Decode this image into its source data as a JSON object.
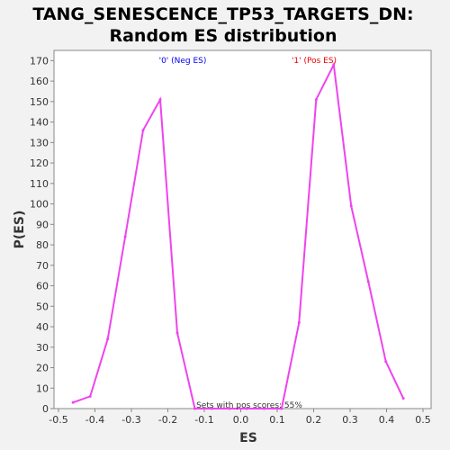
{
  "chart_data": {
    "type": "line",
    "title_line1": "TANG_SENESCENCE_TP53_TARGETS_DN:",
    "title_line2": "Random ES distribution",
    "xlabel": "ES",
    "ylabel": "P(ES)",
    "xlim": [
      -0.5,
      0.5
    ],
    "ylim": [
      0,
      175
    ],
    "x_ticks": [
      "-0.5",
      "-0.4",
      "-0.3",
      "-0.2",
      "-0.1",
      "0.0",
      "0.1",
      "0.2",
      "0.3",
      "0.4",
      "0.5"
    ],
    "y_ticks": [
      "0",
      "10",
      "20",
      "30",
      "40",
      "50",
      "60",
      "70",
      "80",
      "90",
      "100",
      "110",
      "120",
      "130",
      "140",
      "150",
      "160",
      "170"
    ],
    "grid": false,
    "series": [
      {
        "color": "#ee44ee",
        "x": [
          -0.46,
          -0.413,
          -0.365,
          -0.317,
          -0.268,
          -0.221,
          -0.174,
          -0.126,
          -0.079,
          -0.031,
          0.017,
          0.064,
          0.112,
          0.16,
          0.207,
          0.255,
          0.303,
          0.35,
          0.398,
          0.446
        ],
        "y": [
          3,
          6,
          34,
          84,
          136,
          151,
          37,
          0,
          0,
          0,
          0,
          0,
          0,
          42,
          151,
          168,
          99,
          62,
          23,
          5
        ]
      }
    ],
    "annotations": {
      "neg_label": "'0' (Neg ES)",
      "neg_color": "#0000ee",
      "pos_label": "'1' (Pos ES)",
      "pos_color": "#ee0000",
      "pos_scores": "Sets with pos scores: 55%",
      "pos_scores_color": "#333333"
    }
  }
}
